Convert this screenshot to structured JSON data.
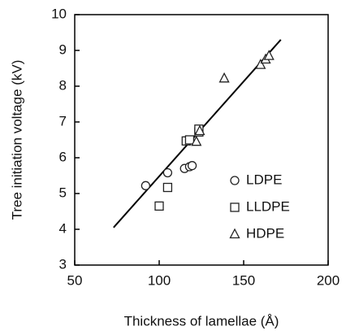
{
  "chart_data": {
    "type": "scatter",
    "xlabel": "Thickness of lamellae (Å)",
    "ylabel": "Tree initiation voltage (kV)",
    "xlim": [
      50,
      200
    ],
    "xticks": [
      50,
      100,
      150,
      200
    ],
    "ylim": [
      3,
      10
    ],
    "yticks": [
      3,
      4,
      5,
      6,
      7,
      8,
      9,
      10
    ],
    "series": [
      {
        "name": "LDPE",
        "marker": "circle",
        "color": "#222",
        "x": [
          92,
          105,
          115,
          118,
          119.5
        ],
        "values": [
          5.22,
          5.58,
          5.7,
          5.75,
          5.78
        ]
      },
      {
        "name": "LLDPE",
        "marker": "square",
        "color": "#222",
        "x": [
          100,
          105,
          116,
          118,
          123.5,
          123.5
        ],
        "values": [
          4.65,
          5.17,
          6.47,
          6.5,
          6.72,
          6.8
        ]
      },
      {
        "name": "HDPE",
        "marker": "triangle",
        "color": "#222",
        "x": [
          122,
          124,
          138.5,
          160,
          163,
          165
        ],
        "values": [
          6.45,
          6.75,
          8.22,
          8.6,
          8.75,
          8.85
        ]
      }
    ],
    "fit_line": {
      "x": [
        73,
        172
      ],
      "values": [
        4.05,
        9.3
      ],
      "color": "#000"
    }
  }
}
